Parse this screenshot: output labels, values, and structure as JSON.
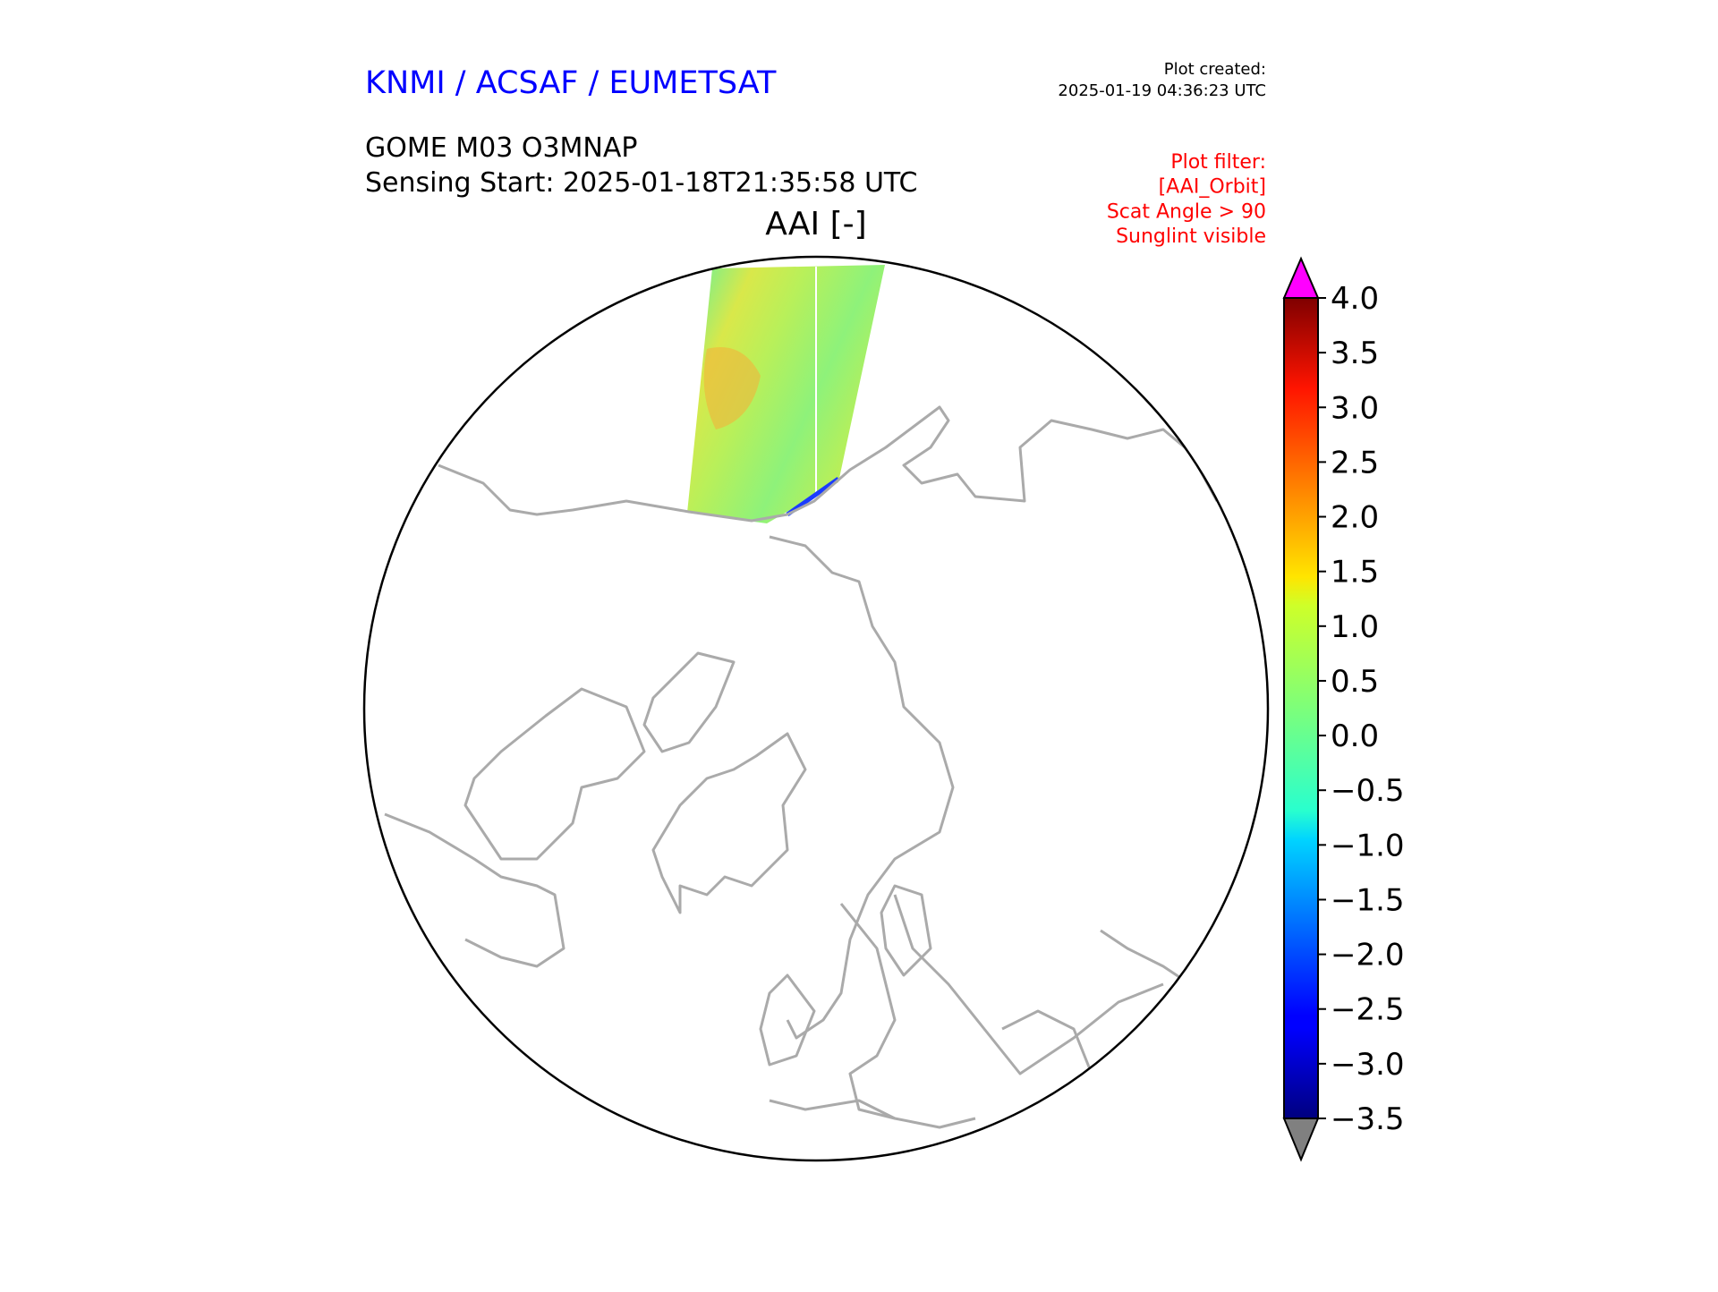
{
  "header": {
    "organization": "KNMI / ACSAF / EUMETSAT",
    "product": "GOME M03 O3MNAP",
    "sensing_start": "Sensing Start: 2025-01-18T21:35:58 UTC",
    "plot_created_label": "Plot created:",
    "plot_created_time": "2025-01-19 04:36:23 UTC",
    "filter_lines": [
      "Plot filter:",
      "[AAI_Orbit]",
      "Scat Angle > 90",
      "Sunglint visible"
    ]
  },
  "colors": {
    "org": "#0000ff",
    "filter": "#ff0000",
    "over": "#ff00ff",
    "under": "#808080",
    "coast": "#aaaaaa"
  },
  "chart_data": {
    "type": "heatmap",
    "title": "AAI [-]",
    "projection": "north polar stereographic",
    "colormap": "jet",
    "clim": [
      -3.5,
      4.0
    ],
    "extend": "both",
    "colorbar_ticks": [
      "4.0",
      "3.5",
      "3.0",
      "2.5",
      "2.0",
      "1.5",
      "1.0",
      "0.5",
      "0.0",
      "−0.5",
      "−1.0",
      "−1.5",
      "−2.0",
      "−2.5",
      "−3.0",
      "−3.5"
    ],
    "colorbar_tick_values": [
      4.0,
      3.5,
      3.0,
      2.5,
      2.0,
      1.5,
      1.0,
      0.5,
      0.0,
      -0.5,
      -1.0,
      -1.5,
      -2.0,
      -2.5,
      -3.0,
      -3.5
    ],
    "swath_typical_range": [
      -1.0,
      3.0
    ]
  }
}
